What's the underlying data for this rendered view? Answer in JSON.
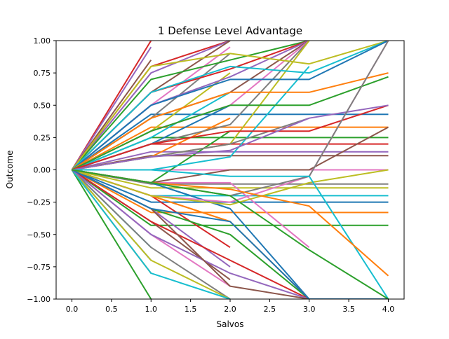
{
  "chart_data": {
    "type": "line",
    "title": "1 Defense Level Advantage",
    "xlabel": "Salvos",
    "ylabel": "Outcome",
    "xlim": [
      -0.2,
      4.2
    ],
    "ylim": [
      -1.0,
      1.0
    ],
    "xticks": [
      "0.0",
      "0.5",
      "1.0",
      "1.5",
      "2.0",
      "2.5",
      "3.0",
      "3.5",
      "4.0"
    ],
    "xtick_values": [
      0,
      0.5,
      1,
      1.5,
      2,
      2.5,
      3,
      3.5,
      4
    ],
    "yticks": [
      "−1.00",
      "−0.75",
      "−0.50",
      "−0.25",
      "0.00",
      "0.25",
      "0.50",
      "0.75",
      "1.00"
    ],
    "ytick_values": [
      -1,
      -0.75,
      -0.5,
      -0.25,
      0,
      0.25,
      0.5,
      0.75,
      1
    ],
    "grid": false,
    "legend": "none",
    "colors": [
      "#1f77b4",
      "#ff7f0e",
      "#2ca02c",
      "#d62728",
      "#9467bd",
      "#8c564b",
      "#e377c2",
      "#7f7f7f",
      "#bcbd22",
      "#17becf"
    ],
    "series": [
      {
        "values": [
          0,
          0.43,
          0.43,
          0.43,
          0.43
        ]
      },
      {
        "values": [
          0,
          0.33,
          0.33,
          0.33,
          0.33
        ]
      },
      {
        "values": [
          0,
          0.25,
          0.25,
          0.25,
          0.25
        ]
      },
      {
        "values": [
          0,
          0.2,
          0.2,
          0.2,
          0.2
        ]
      },
      {
        "values": [
          0,
          0.14,
          0.14,
          0.14,
          0.14
        ]
      },
      {
        "values": [
          0,
          0.11,
          0.11,
          0.11,
          0.11
        ]
      },
      {
        "values": [
          0,
          0,
          0,
          0,
          0
        ]
      },
      {
        "values": [
          0,
          -0.11,
          -0.11,
          -0.11,
          -0.11
        ]
      },
      {
        "values": [
          0,
          -0.14,
          -0.14,
          -0.14,
          -0.14
        ]
      },
      {
        "values": [
          0,
          -0.2,
          -0.2,
          -0.2,
          -0.2
        ]
      },
      {
        "values": [
          0,
          -0.25,
          -0.25,
          -0.25,
          -0.25
        ]
      },
      {
        "values": [
          0,
          -0.33,
          -0.33,
          -0.33,
          -0.33
        ]
      },
      {
        "values": [
          0,
          -0.43,
          -0.43,
          -0.43,
          -0.43
        ]
      },
      {
        "values": [
          0,
          1.0
        ]
      },
      {
        "values": [
          0,
          0.95
        ]
      },
      {
        "values": [
          0,
          0.85
        ]
      },
      {
        "values": [
          0,
          0.75
        ]
      },
      {
        "values": [
          0,
          0.6
        ]
      },
      {
        "values": [
          0,
          0.5
        ]
      },
      {
        "values": [
          0,
          -0.6
        ]
      },
      {
        "values": [
          0,
          -0.7
        ]
      },
      {
        "values": [
          0,
          -0.8
        ]
      },
      {
        "values": [
          0,
          -1.0
        ]
      },
      {
        "values": [
          0,
          0.8,
          1.0
        ]
      },
      {
        "values": [
          0,
          0.75,
          1.0
        ]
      },
      {
        "values": [
          0,
          0.6,
          1.0
        ]
      },
      {
        "values": [
          0,
          0.5,
          0.95
        ]
      },
      {
        "values": [
          0,
          0.4,
          0.9
        ]
      },
      {
        "values": [
          0,
          0.3,
          0.75
        ]
      },
      {
        "values": [
          0,
          0.25,
          0.6
        ]
      },
      {
        "values": [
          0,
          0.2,
          0.5
        ]
      },
      {
        "values": [
          0,
          0.1,
          0.4
        ]
      },
      {
        "values": [
          0,
          -0.1,
          0.3
        ]
      },
      {
        "values": [
          0,
          -0.2,
          -0.6
        ]
      },
      {
        "values": [
          0,
          -0.3,
          -0.75
        ]
      },
      {
        "values": [
          0,
          -0.4,
          -0.85
        ]
      },
      {
        "values": [
          0,
          -0.5,
          -0.9
        ]
      },
      {
        "values": [
          0,
          -0.6,
          -1.0
        ]
      },
      {
        "values": [
          0,
          -0.7,
          -1.0
        ]
      },
      {
        "values": [
          0,
          -0.8,
          -1.0
        ]
      },
      {
        "values": [
          0,
          -0.1,
          -0.3
        ]
      },
      {
        "values": [
          0,
          -0.2,
          -0.4
        ]
      },
      {
        "values": [
          0,
          0.7,
          0.85,
          1.0
        ]
      },
      {
        "values": [
          0,
          0.6,
          0.78,
          1.0
        ]
      },
      {
        "values": [
          0,
          0.5,
          0.72,
          1.0
        ]
      },
      {
        "values": [
          0,
          0.4,
          0.6,
          1.0
        ]
      },
      {
        "values": [
          0,
          0.3,
          0.5,
          1.0
        ]
      },
      {
        "values": [
          0,
          0.2,
          0.35,
          1.0
        ]
      },
      {
        "values": [
          0,
          0.1,
          0.2,
          1.0
        ]
      },
      {
        "values": [
          0,
          0.0,
          0.1,
          0.8
        ]
      },
      {
        "values": [
          0,
          -0.1,
          -0.3,
          -1.0
        ]
      },
      {
        "values": [
          0,
          -0.2,
          -0.4,
          -1.0
        ]
      },
      {
        "values": [
          0,
          -0.3,
          -0.5,
          -1.0
        ]
      },
      {
        "values": [
          0,
          -0.4,
          -0.7,
          -1.0
        ]
      },
      {
        "values": [
          0,
          -0.5,
          -0.8,
          -1.0
        ]
      },
      {
        "values": [
          0,
          -0.3,
          -0.9,
          -1.0
        ]
      },
      {
        "values": [
          0,
          -0.1,
          -0.1,
          -0.6
        ]
      },
      {
        "values": [
          0,
          0.1,
          0.2,
          0.4
        ]
      },
      {
        "values": [
          0,
          0.8,
          0.9,
          0.82,
          1.0
        ]
      },
      {
        "values": [
          0,
          0.6,
          0.8,
          0.75,
          1.0
        ]
      },
      {
        "values": [
          0,
          0.5,
          0.7,
          0.7,
          1.0
        ]
      },
      {
        "values": [
          0,
          0.4,
          0.6,
          0.6,
          0.75
        ]
      },
      {
        "values": [
          0,
          0.3,
          0.5,
          0.5,
          0.72
        ]
      },
      {
        "values": [
          0,
          0.2,
          0.3,
          0.3,
          0.5
        ]
      },
      {
        "values": [
          0,
          0.1,
          0.15,
          0.4,
          0.5
        ]
      },
      {
        "values": [
          0,
          -0.1,
          0.0,
          0.0,
          0.33
        ]
      },
      {
        "values": [
          0,
          -0.2,
          -0.25,
          -0.05,
          1.0
        ]
      },
      {
        "values": [
          0,
          -0.1,
          -0.2,
          -0.05,
          1.0
        ]
      },
      {
        "values": [
          0,
          -0.2,
          -0.27,
          -0.1,
          0.0
        ]
      },
      {
        "values": [
          0,
          0.0,
          -0.05,
          -0.05,
          -1.0
        ]
      },
      {
        "values": [
          0,
          -0.3,
          -0.4,
          -1.0,
          -1.0
        ]
      },
      {
        "values": [
          0,
          -0.1,
          -0.15,
          -0.28,
          -0.82
        ]
      },
      {
        "values": [
          0,
          -0.1,
          -0.2,
          -0.62,
          -1.0
        ]
      }
    ]
  }
}
